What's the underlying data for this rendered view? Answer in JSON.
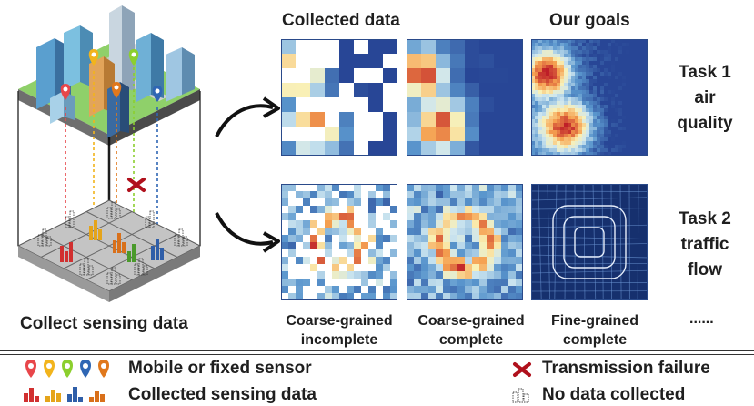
{
  "headers": {
    "collected": "Collected data",
    "goals": "Our goals"
  },
  "left_caption": "Collect sensing data",
  "tasks": [
    {
      "line1": "Task 1",
      "line2": "air",
      "line3": "quality"
    },
    {
      "line1": "Task 2",
      "line2": "traffic",
      "line3": "flow"
    }
  ],
  "captions": [
    {
      "line1": "Coarse-grained",
      "line2": "incomplete"
    },
    {
      "line1": "Coarse-grained",
      "line2": "complete"
    },
    {
      "line1": "Fine-grained",
      "line2": "complete"
    }
  ],
  "ellipsis": "......",
  "legend": {
    "sensor": "Mobile or fixed sensor",
    "collected": "Collected sensing data",
    "failure": "Transmission failure",
    "nodata": "No data collected"
  },
  "colors": {
    "sensors": [
      "#e8464a",
      "#f2b41c",
      "#8ccf2e",
      "#2f66b4",
      "#e0781c"
    ],
    "failure_mark": "#b0101c"
  }
}
